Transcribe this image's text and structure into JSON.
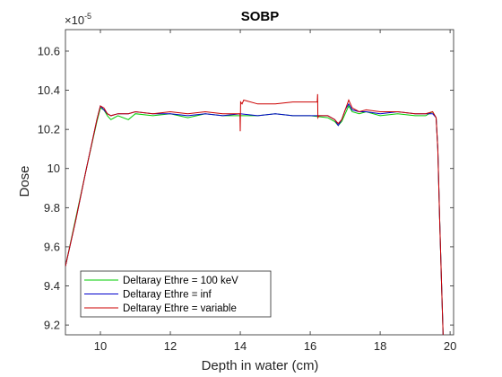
{
  "chart_data": {
    "type": "line",
    "title": "SOBP",
    "xlabel": "Depth in water (cm)",
    "ylabel": "Dose",
    "y_exponent_label": "×10",
    "y_exponent_power": "-5",
    "xlim": [
      9.0,
      20.1
    ],
    "ylim": [
      9.15,
      10.71
    ],
    "xticks": [
      10,
      12,
      14,
      16,
      18,
      20
    ],
    "yticks": [
      9.2,
      9.4,
      9.6,
      9.8,
      10.0,
      10.2,
      10.4,
      10.6
    ],
    "ytick_labels": [
      "9.2",
      "9.4",
      "9.6",
      "9.8",
      "10",
      "10.2",
      "10.4",
      "10.6"
    ],
    "xtick_labels": [
      "10",
      "12",
      "14",
      "16",
      "18",
      "20"
    ],
    "legend_position": "bottom-left",
    "grid": false,
    "series": [
      {
        "name": "Deltaray Ethre = 100 keV",
        "color": "#00cc00",
        "x": [
          9.0,
          9.3,
          9.6,
          9.9,
          10.0,
          10.1,
          10.2,
          10.3,
          10.5,
          10.8,
          11.0,
          11.5,
          12.0,
          12.5,
          13.0,
          13.5,
          14.0,
          14.5,
          15.0,
          15.5,
          16.0,
          16.5,
          16.7,
          16.8,
          16.9,
          17.0,
          17.1,
          17.2,
          17.4,
          17.6,
          18.0,
          18.5,
          19.0,
          19.3,
          19.5,
          19.6,
          19.65,
          19.7,
          19.75,
          19.8
        ],
        "y": [
          9.5,
          9.75,
          10.0,
          10.24,
          10.31,
          10.3,
          10.27,
          10.25,
          10.27,
          10.25,
          10.28,
          10.27,
          10.28,
          10.26,
          10.28,
          10.27,
          10.27,
          10.27,
          10.28,
          10.27,
          10.27,
          10.26,
          10.24,
          10.22,
          10.24,
          10.28,
          10.32,
          10.29,
          10.28,
          10.29,
          10.27,
          10.28,
          10.27,
          10.27,
          10.29,
          10.26,
          10.1,
          9.75,
          9.45,
          9.15
        ]
      },
      {
        "name": "Deltaray Ethre = inf",
        "color": "#0000cc",
        "x": [
          9.0,
          9.3,
          9.6,
          9.9,
          10.0,
          10.1,
          10.2,
          10.3,
          10.5,
          10.8,
          11.0,
          11.5,
          12.0,
          12.5,
          13.0,
          13.5,
          14.0,
          14.5,
          15.0,
          15.5,
          16.0,
          16.5,
          16.7,
          16.8,
          16.9,
          17.0,
          17.1,
          17.2,
          17.4,
          17.6,
          18.0,
          18.5,
          19.0,
          19.3,
          19.5,
          19.6,
          19.65,
          19.7,
          19.75,
          19.8
        ],
        "y": [
          9.5,
          9.74,
          10.0,
          10.25,
          10.32,
          10.3,
          10.28,
          10.27,
          10.28,
          10.28,
          10.29,
          10.28,
          10.28,
          10.27,
          10.28,
          10.27,
          10.28,
          10.27,
          10.28,
          10.27,
          10.27,
          10.27,
          10.25,
          10.22,
          10.25,
          10.3,
          10.33,
          10.3,
          10.29,
          10.29,
          10.28,
          10.29,
          10.28,
          10.28,
          10.28,
          10.26,
          10.1,
          9.75,
          9.45,
          9.15
        ]
      },
      {
        "name": "Deltaray Ethre = variable",
        "color": "#cc0000",
        "x": [
          9.0,
          9.3,
          9.6,
          9.9,
          10.0,
          10.1,
          10.2,
          10.3,
          10.5,
          10.8,
          11.0,
          11.5,
          12.0,
          12.5,
          13.0,
          13.5,
          13.99,
          14.0,
          14.01,
          14.05,
          14.1,
          14.5,
          15.0,
          15.5,
          16.0,
          16.2,
          16.21,
          16.22,
          16.25,
          16.5,
          16.7,
          16.8,
          16.9,
          17.0,
          17.1,
          17.2,
          17.4,
          17.6,
          18.0,
          18.5,
          19.0,
          19.3,
          19.5,
          19.6,
          19.65,
          19.7,
          19.75,
          19.8
        ],
        "y": [
          9.5,
          9.74,
          10.0,
          10.25,
          10.32,
          10.31,
          10.28,
          10.27,
          10.28,
          10.28,
          10.29,
          10.28,
          10.29,
          10.28,
          10.29,
          10.28,
          10.28,
          10.19,
          10.34,
          10.33,
          10.35,
          10.33,
          10.33,
          10.34,
          10.34,
          10.34,
          10.38,
          10.26,
          10.27,
          10.27,
          10.25,
          10.23,
          10.25,
          10.3,
          10.35,
          10.31,
          10.29,
          10.3,
          10.29,
          10.29,
          10.28,
          10.28,
          10.29,
          10.26,
          10.1,
          9.75,
          9.45,
          9.15
        ]
      }
    ]
  }
}
